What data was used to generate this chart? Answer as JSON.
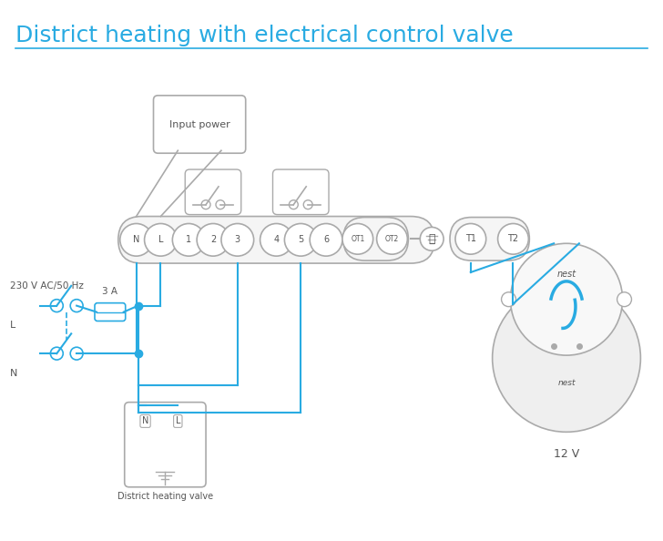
{
  "title": "District heating with electrical control valve",
  "title_color": "#29abe2",
  "title_fontsize": 18,
  "bg_color": "#ffffff",
  "wire_color": "#29abe2",
  "box_color": "#aaaaaa",
  "text_color": "#555555",
  "terminal_color": "#aaaaaa",
  "line_color": "#aaaaaa",
  "terminal_labels": [
    "N",
    "L",
    "1",
    "2",
    "3",
    "4",
    "5",
    "6"
  ],
  "ot_labels": [
    "OT1",
    "OT2"
  ],
  "right_labels": [
    "⊥",
    "T1",
    "T2"
  ],
  "note_230v": "230 V AC/50 Hz",
  "note_3a": "3 A",
  "note_l": "L",
  "note_n": "N",
  "note_valve": "District heating valve",
  "note_12v": "12 V"
}
